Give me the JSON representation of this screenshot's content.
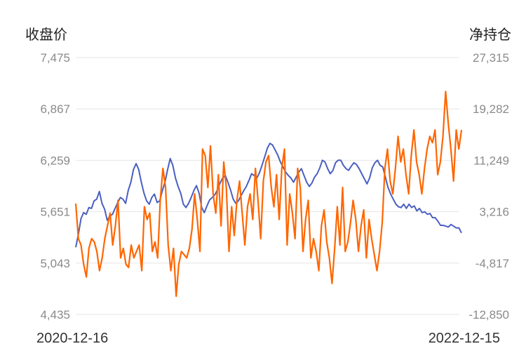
{
  "chart_data": {
    "type": "line",
    "title": "",
    "left_axis_title": "收盘价",
    "right_axis_title": "净持仓",
    "x_start_label": "2020-12-16",
    "x_end_label": "2022-12-15",
    "left_ticks": [
      "7,475",
      "6,867",
      "6,259",
      "5,651",
      "5,043",
      "4,435"
    ],
    "right_ticks": [
      "27,315",
      "19,282",
      "11,249",
      "3,216",
      "-4,817",
      "-12,850"
    ],
    "left_ylim": [
      4435,
      7475
    ],
    "right_ylim": [
      -12850,
      27315
    ],
    "grid": true,
    "colors": {
      "close": "#4a5fc1",
      "net": "#ff6600"
    },
    "series": [
      {
        "axis": "left",
        "values": [
          5230,
          5380,
          5570,
          5640,
          5620,
          5700,
          5690,
          5780,
          5800,
          5890,
          5750,
          5680,
          5550,
          5600,
          5620,
          5690,
          5760,
          5820,
          5800,
          5750,
          5900,
          6000,
          6150,
          6220,
          6150,
          6000,
          5870,
          5780,
          5740,
          5820,
          5860,
          5760,
          5780,
          5900,
          6000,
          6150,
          6280,
          6200,
          6050,
          5950,
          5870,
          5740,
          5700,
          5750,
          5820,
          5900,
          5960,
          5870,
          5700,
          5640,
          5720,
          5790,
          5820,
          5850,
          5910,
          5990,
          6050,
          6080,
          6000,
          5910,
          5800,
          5750,
          5780,
          5840,
          5900,
          5950,
          6020,
          6100,
          6080,
          6050,
          6110,
          6200,
          6300,
          6400,
          6460,
          6440,
          6380,
          6320,
          6240,
          6180,
          6120,
          6080,
          6050,
          6000,
          6060,
          6120,
          6160,
          6080,
          6000,
          5950,
          5990,
          6060,
          6100,
          6170,
          6260,
          6240,
          6160,
          6100,
          6140,
          6230,
          6260,
          6260,
          6200,
          6160,
          6140,
          6190,
          6230,
          6210,
          6160,
          6100,
          6040,
          5980,
          6050,
          6170,
          6230,
          6260,
          6200,
          6180,
          6060,
          5940,
          5860,
          5800,
          5740,
          5710,
          5700,
          5740,
          5690,
          5740,
          5700,
          5720,
          5660,
          5690,
          5640,
          5650,
          5620,
          5630,
          5580,
          5580,
          5540,
          5490,
          5490,
          5480,
          5470,
          5500,
          5480,
          5460,
          5460,
          5400
        ]
      },
      {
        "axis": "right",
        "values": [
          4500,
          -1000,
          -2000,
          -5000,
          -7000,
          -2500,
          -1000,
          -1500,
          -3000,
          -6000,
          -4000,
          -1000,
          1000,
          3000,
          -2000,
          1000,
          5000,
          -4000,
          -2500,
          -5000,
          -5500,
          -2000,
          -4000,
          -3000,
          -2000,
          -6000,
          4000,
          2000,
          3000,
          -3000,
          -1500,
          -4000,
          5000,
          10000,
          7000,
          -2000,
          -6000,
          -2500,
          -10000,
          -5000,
          -3000,
          -3500,
          -4000,
          -2500,
          500,
          6000,
          2000,
          -3000,
          13000,
          12000,
          7000,
          13500,
          6000,
          3000,
          9000,
          1000,
          11000,
          7000,
          -3000,
          4000,
          -500,
          5000,
          8000,
          3000,
          -2000,
          4000,
          6000,
          2000,
          10000,
          5000,
          -1000,
          8000,
          11000,
          12000,
          7000,
          4000,
          9000,
          2000,
          10000,
          13000,
          -2000,
          6000,
          3000,
          -1000,
          10000,
          7000,
          -3000,
          2000,
          5000,
          -4000,
          -1000,
          -3000,
          -6000,
          1000,
          3500,
          -1500,
          -4000,
          -8000,
          -2500,
          4000,
          -2000,
          7000,
          -3000,
          -1500,
          1500,
          5000,
          2000,
          -3000,
          1000,
          3500,
          -4000,
          2000,
          -1000,
          -3500,
          -6000,
          -3000,
          1500,
          10000,
          13000,
          8000,
          6000,
          10000,
          15000,
          11000,
          13000,
          9000,
          6000,
          12000,
          16000,
          11000,
          9000,
          6000,
          10000,
          13000,
          15000,
          14000,
          16000,
          9000,
          11000,
          15000,
          22000,
          17000,
          13000,
          8000,
          16000,
          13000,
          16000
        ]
      }
    ]
  }
}
